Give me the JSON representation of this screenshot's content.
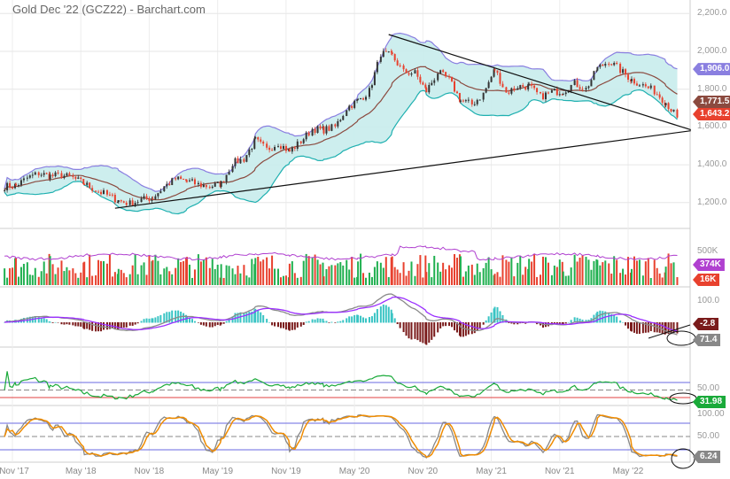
{
  "title": "Gold Dec '22 (GCZ22) - Barchart.com",
  "colors": {
    "up": "#333333",
    "down": "#e8412e",
    "bb_upper": "#8a7fe0",
    "bb_lower": "#1fb0b0",
    "bb_mid": "#8b4a3f",
    "bb_fill": "#c8ecec",
    "volume_up": "#20b050",
    "volume_down": "#e8412e",
    "open_interest": "#b040d0",
    "macd": "#8a8a8a",
    "signal": "#9b30ff",
    "hist_pos": "#39c4c4",
    "hist_neg": "#7a1b1b",
    "rsi": "#1aaa3a",
    "stoch_k": "#888888",
    "stoch_d": "#f08c00"
  },
  "chart_data": {
    "type": "line",
    "title": "Gold Dec '22 (GCZ22) - Barchart.com",
    "xlabel": "",
    "ylabel": "",
    "x_tick_labels": [
      "Nov '17",
      "May '18",
      "Nov '18",
      "May '19",
      "Nov '19",
      "May '20",
      "Nov '20",
      "May '21",
      "Nov '21",
      "May '22"
    ],
    "price": {
      "ylim": [
        1100,
        2250
      ],
      "y_tick_labels": [
        "2,200.0",
        "2,000.0",
        "1,800.0",
        "1,600.0",
        "1,400.0",
        "1,200.0"
      ],
      "y_ticks": [
        2200,
        2000,
        1800,
        1600,
        1400,
        1200
      ],
      "months": [
        "Oct '17",
        "Nov '17",
        "Dec '17",
        "Jan '18",
        "Feb '18",
        "Mar '18",
        "Apr '18",
        "May '18",
        "Jun '18",
        "Jul '18",
        "Aug '18",
        "Sep '18",
        "Oct '18",
        "Nov '18",
        "Dec '18",
        "Jan '19",
        "Feb '19",
        "Mar '19",
        "Apr '19",
        "May '19",
        "Jun '19",
        "Jul '19",
        "Aug '19",
        "Sep '19",
        "Oct '19",
        "Nov '19",
        "Dec '19",
        "Jan '20",
        "Feb '20",
        "Mar '20",
        "Apr '20",
        "May '20",
        "Jun '20",
        "Jul '20",
        "Aug '20",
        "Sep '20",
        "Oct '20",
        "Nov '20",
        "Dec '20",
        "Jan '21",
        "Feb '21",
        "Mar '21",
        "Apr '21",
        "May '21",
        "Jun '21",
        "Jul '21",
        "Aug '21",
        "Sep '21",
        "Oct '21",
        "Nov '21",
        "Dec '21",
        "Jan '22",
        "Feb '22",
        "Mar '22",
        "Apr '22",
        "May '22",
        "Jun '22",
        "Jul '22",
        "Aug '22",
        "Sep '22"
      ],
      "monthly_close": [
        1285,
        1290,
        1330,
        1355,
        1340,
        1345,
        1330,
        1300,
        1265,
        1240,
        1210,
        1195,
        1215,
        1225,
        1285,
        1325,
        1315,
        1295,
        1285,
        1300,
        1410,
        1430,
        1530,
        1480,
        1515,
        1470,
        1525,
        1590,
        1585,
        1600,
        1700,
        1740,
        1790,
        1990,
        1975,
        1890,
        1885,
        1790,
        1890,
        1850,
        1740,
        1720,
        1775,
        1905,
        1780,
        1815,
        1815,
        1760,
        1785,
        1790,
        1830,
        1800,
        1910,
        1950,
        1900,
        1850,
        1820,
        1790,
        1730,
        1650
      ],
      "last": "1,643.2",
      "bb_upper_last": "1,906.0",
      "bb_mid_last": "1,771.5",
      "trendlines": [
        {
          "from": [
            34,
            2089
          ],
          "to": [
            60.5,
            1585
          ]
        },
        {
          "from": [
            10,
            1170
          ],
          "to": [
            60.5,
            1580
          ]
        }
      ]
    },
    "volume": {
      "y_tick_labels": [
        "500K"
      ],
      "open_interest_last": "374K",
      "volume_last": "16K"
    },
    "macd": {
      "y_tick_labels": [
        "100.0"
      ],
      "macd_last": "-2.8",
      "signal_last": "71.4"
    },
    "rsi": {
      "y_tick_labels": [
        "50.00"
      ],
      "levels": [
        70,
        50,
        30
      ],
      "last": "31.98"
    },
    "stochastic": {
      "y_tick_labels": [
        "100.00",
        "50.00"
      ],
      "levels": [
        80,
        50,
        20
      ],
      "last": "6.24"
    }
  }
}
